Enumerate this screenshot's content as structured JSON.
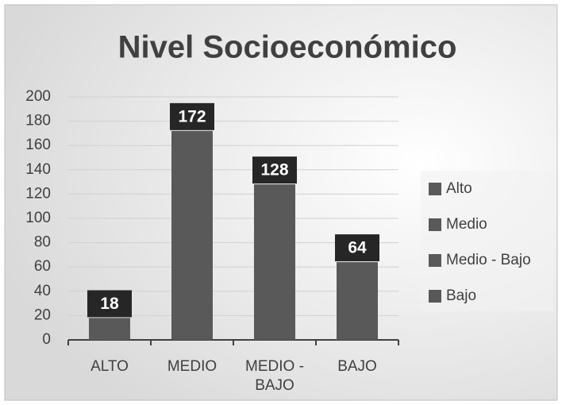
{
  "chart_data": {
    "type": "bar",
    "title": "Nivel Socioeconómico",
    "categories": [
      "ALTO",
      "MEDIO",
      "MEDIO - BAJO",
      "BAJO"
    ],
    "values": [
      18,
      172,
      128,
      64
    ],
    "color": "#595959",
    "legend": [
      "Alto",
      "Medio",
      "Medio - Bajo",
      "Bajo"
    ],
    "ylim": [
      0,
      200
    ],
    "yticks": [
      0,
      20,
      40,
      60,
      80,
      100,
      120,
      140,
      160,
      180,
      200
    ],
    "grid": true
  }
}
